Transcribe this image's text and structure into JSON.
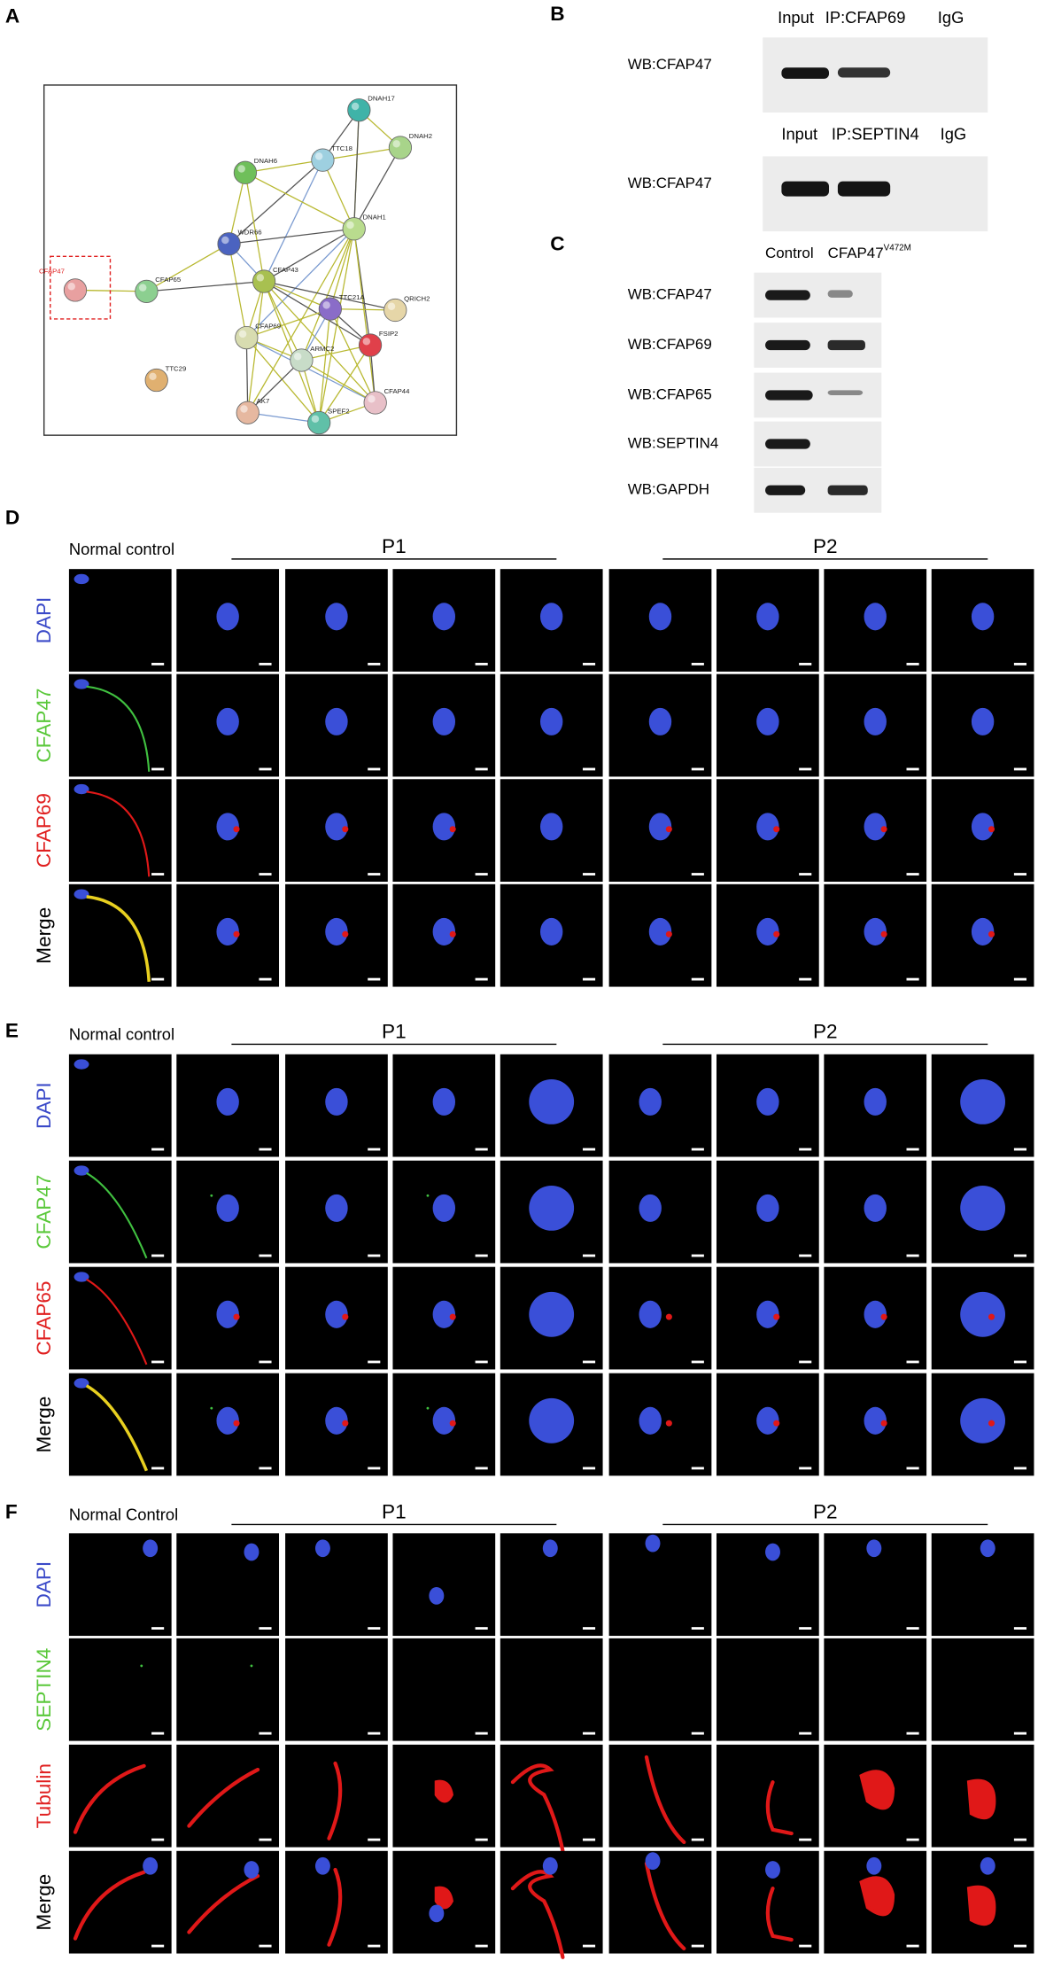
{
  "panel_a": {
    "label": "A",
    "nodes": [
      "DNAH17",
      "DNAH2",
      "TTC18",
      "DNAH6",
      "DNAH1",
      "WDR66",
      "CFAP43",
      "CFAP65",
      "CFAP47",
      "TTC21A",
      "QRICH2",
      "CFAP69",
      "ARMC2",
      "FSIP2",
      "TTC29",
      "AK7",
      "SPEF2",
      "CFAP44"
    ]
  },
  "panel_b": {
    "label": "B",
    "blots": [
      {
        "lanes": [
          "Input",
          "IP:CFAP69",
          "IgG"
        ],
        "row": "WB:CFAP47"
      },
      {
        "lanes": [
          "Input",
          "IP:SEPTIN4",
          "IgG"
        ],
        "row": "WB:CFAP47"
      }
    ]
  },
  "panel_c": {
    "label": "C",
    "lanes": [
      {
        "text": "Control"
      },
      {
        "text": "CFAP47",
        "sup": "V472M"
      }
    ],
    "rows": [
      "WB:CFAP47",
      "WB:CFAP69",
      "WB:CFAP65",
      "WB:SEPTIN4",
      "WB:GAPDH"
    ]
  },
  "panel_d": {
    "label": "D",
    "groups": [
      "Normal control",
      "P1",
      "P2"
    ],
    "rows": [
      "DAPI",
      "CFAP47",
      "CFAP69",
      "Merge"
    ]
  },
  "panel_e": {
    "label": "E",
    "groups": [
      "Normal control",
      "P1",
      "P2"
    ],
    "rows": [
      "DAPI",
      "CFAP47",
      "CFAP65",
      "Merge"
    ]
  },
  "panel_f": {
    "label": "F",
    "groups": [
      "Normal Control",
      "P1",
      "P2"
    ],
    "rows": [
      "DAPI",
      "SEPTIN4",
      "Tubulin",
      "Merge"
    ]
  }
}
